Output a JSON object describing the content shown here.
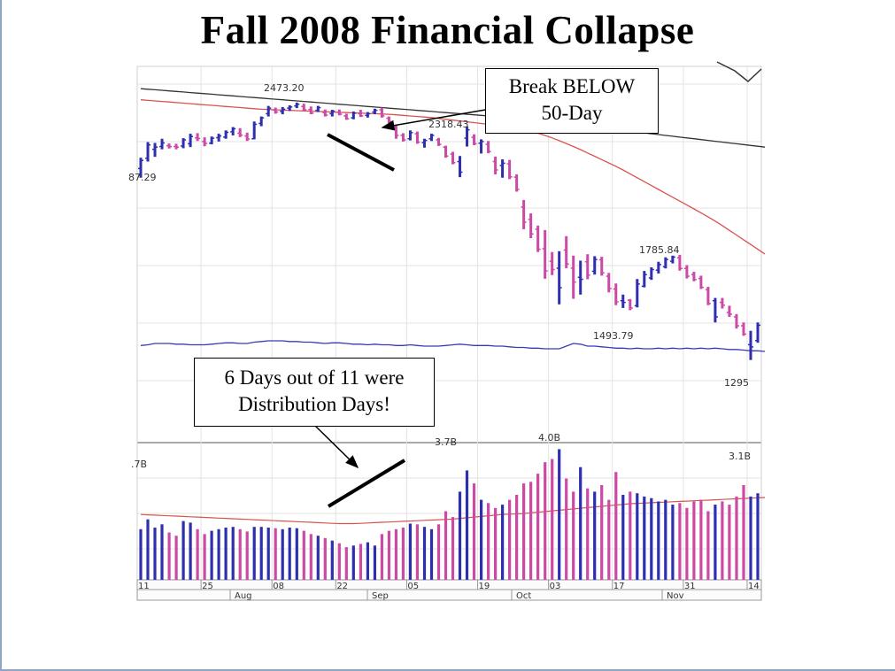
{
  "slide": {
    "title": "Fall 2008 Financial Collapse"
  },
  "callouts": {
    "break_line1": "Break BELOW",
    "break_line2": "50-Day",
    "dist_line1": "6 Days out of 11 were",
    "dist_line2": "Distribution Days!"
  },
  "colors": {
    "up_bar": "#2e2eb0",
    "down_bar": "#cc4aa4",
    "ma50": "#d9534f",
    "ma200": "#333333",
    "rs_line": "#3a3ab8",
    "grid": "#e3e3e3",
    "volume_ma": "#d9534f"
  },
  "chart_data": {
    "type": "ohlc",
    "price_labels": [
      "87.29",
      "2473.20",
      "2318.43",
      "1785.84",
      "1493.79",
      "1295"
    ],
    "volume_labels": [
      ".7B",
      "3.7B",
      "4.0B",
      "3.1B"
    ],
    "x_tick_labels": [
      "11",
      "25",
      "08",
      "22",
      "05",
      "19",
      "03",
      "17",
      "31",
      "14"
    ],
    "month_labels": [
      "Aug",
      "Sep",
      "Oct",
      "Nov"
    ],
    "ylim": [
      1240,
      2560
    ],
    "volume_ylim": [
      0,
      4.2
    ],
    "rs_ylim": [
      0,
      100
    ],
    "ohlc": [
      {
        "o": 2193,
        "h": 2232,
        "l": 2160,
        "c": 2222,
        "v": 1.55,
        "up": true
      },
      {
        "o": 2230,
        "h": 2288,
        "l": 2218,
        "c": 2278,
        "v": 1.85,
        "up": true
      },
      {
        "o": 2262,
        "h": 2285,
        "l": 2235,
        "c": 2270,
        "v": 1.6,
        "up": true
      },
      {
        "o": 2272,
        "h": 2300,
        "l": 2262,
        "c": 2285,
        "v": 1.7,
        "up": true
      },
      {
        "o": 2275,
        "h": 2283,
        "l": 2265,
        "c": 2272,
        "v": 1.45,
        "up": false
      },
      {
        "o": 2272,
        "h": 2282,
        "l": 2262,
        "c": 2270,
        "v": 1.35,
        "up": false
      },
      {
        "o": 2274,
        "h": 2302,
        "l": 2266,
        "c": 2296,
        "v": 1.8,
        "up": true
      },
      {
        "o": 2282,
        "h": 2318,
        "l": 2270,
        "c": 2308,
        "v": 1.75,
        "up": true
      },
      {
        "o": 2303,
        "h": 2320,
        "l": 2292,
        "c": 2301,
        "v": 1.55,
        "up": false
      },
      {
        "o": 2290,
        "h": 2305,
        "l": 2273,
        "c": 2283,
        "v": 1.4,
        "up": false
      },
      {
        "o": 2284,
        "h": 2308,
        "l": 2280,
        "c": 2302,
        "v": 1.5,
        "up": true
      },
      {
        "o": 2304,
        "h": 2318,
        "l": 2290,
        "c": 2310,
        "v": 1.55,
        "up": true
      },
      {
        "o": 2306,
        "h": 2330,
        "l": 2300,
        "c": 2323,
        "v": 1.6,
        "up": true
      },
      {
        "o": 2325,
        "h": 2342,
        "l": 2312,
        "c": 2336,
        "v": 1.62,
        "up": true
      },
      {
        "o": 2320,
        "h": 2338,
        "l": 2306,
        "c": 2313,
        "v": 1.55,
        "up": false
      },
      {
        "o": 2310,
        "h": 2322,
        "l": 2292,
        "c": 2299,
        "v": 1.48,
        "up": false
      },
      {
        "o": 2300,
        "h": 2362,
        "l": 2298,
        "c": 2352,
        "v": 1.62,
        "up": true
      },
      {
        "o": 2355,
        "h": 2380,
        "l": 2345,
        "c": 2375,
        "v": 1.62,
        "up": true
      },
      {
        "o": 2390,
        "h": 2418,
        "l": 2380,
        "c": 2410,
        "v": 1.6,
        "up": true
      },
      {
        "o": 2403,
        "h": 2412,
        "l": 2390,
        "c": 2396,
        "v": 1.58,
        "up": false
      },
      {
        "o": 2398,
        "h": 2414,
        "l": 2388,
        "c": 2406,
        "v": 1.55,
        "up": true
      },
      {
        "o": 2410,
        "h": 2420,
        "l": 2400,
        "c": 2414,
        "v": 1.6,
        "up": true
      },
      {
        "o": 2418,
        "h": 2430,
        "l": 2410,
        "c": 2424,
        "v": 1.58,
        "up": true
      },
      {
        "o": 2416,
        "h": 2426,
        "l": 2400,
        "c": 2404,
        "v": 1.5,
        "up": false
      },
      {
        "o": 2405,
        "h": 2416,
        "l": 2388,
        "c": 2392,
        "v": 1.4,
        "up": false
      },
      {
        "o": 2402,
        "h": 2418,
        "l": 2396,
        "c": 2412,
        "v": 1.35,
        "up": true
      },
      {
        "o": 2394,
        "h": 2405,
        "l": 2380,
        "c": 2385,
        "v": 1.28,
        "up": false
      },
      {
        "o": 2390,
        "h": 2404,
        "l": 2380,
        "c": 2399,
        "v": 1.2,
        "up": true
      },
      {
        "o": 2395,
        "h": 2405,
        "l": 2384,
        "c": 2388,
        "v": 1.12,
        "up": false
      },
      {
        "o": 2382,
        "h": 2390,
        "l": 2368,
        "c": 2372,
        "v": 1.0,
        "up": false
      },
      {
        "o": 2375,
        "h": 2398,
        "l": 2370,
        "c": 2392,
        "v": 1.05,
        "up": true
      },
      {
        "o": 2390,
        "h": 2404,
        "l": 2378,
        "c": 2382,
        "v": 1.1,
        "up": false
      },
      {
        "o": 2384,
        "h": 2396,
        "l": 2376,
        "c": 2390,
        "v": 1.15,
        "up": true
      },
      {
        "o": 2396,
        "h": 2408,
        "l": 2388,
        "c": 2402,
        "v": 1.05,
        "up": true
      },
      {
        "o": 2404,
        "h": 2412,
        "l": 2376,
        "c": 2382,
        "v": 1.4,
        "up": false
      },
      {
        "o": 2374,
        "h": 2380,
        "l": 2356,
        "c": 2362,
        "v": 1.5,
        "up": false
      },
      {
        "o": 2340,
        "h": 2350,
        "l": 2300,
        "c": 2312,
        "v": 1.55,
        "up": false
      },
      {
        "o": 2312,
        "h": 2320,
        "l": 2290,
        "c": 2296,
        "v": 1.6,
        "up": false
      },
      {
        "o": 2300,
        "h": 2330,
        "l": 2294,
        "c": 2322,
        "v": 1.72,
        "up": true
      },
      {
        "o": 2318,
        "h": 2326,
        "l": 2282,
        "c": 2288,
        "v": 1.7,
        "up": false
      },
      {
        "o": 2286,
        "h": 2300,
        "l": 2268,
        "c": 2294,
        "v": 1.62,
        "up": true
      },
      {
        "o": 2300,
        "h": 2318,
        "l": 2292,
        "c": 2312,
        "v": 1.55,
        "up": true
      },
      {
        "o": 2296,
        "h": 2303,
        "l": 2274,
        "c": 2280,
        "v": 1.7,
        "up": false
      },
      {
        "o": 2270,
        "h": 2275,
        "l": 2232,
        "c": 2238,
        "v": 2.1,
        "up": false
      },
      {
        "o": 2245,
        "h": 2253,
        "l": 2208,
        "c": 2214,
        "v": 1.92,
        "up": false
      },
      {
        "o": 2218,
        "h": 2238,
        "l": 2162,
        "c": 2180,
        "v": 2.7,
        "up": true
      },
      {
        "o": 2302,
        "h": 2344,
        "l": 2272,
        "c": 2332,
        "v": 3.35,
        "up": true
      },
      {
        "o": 2305,
        "h": 2316,
        "l": 2277,
        "c": 2282,
        "v": 2.95,
        "up": false
      },
      {
        "o": 2284,
        "h": 2298,
        "l": 2247,
        "c": 2290,
        "v": 2.45,
        "up": true
      },
      {
        "o": 2280,
        "h": 2292,
        "l": 2248,
        "c": 2254,
        "v": 2.35,
        "up": false
      },
      {
        "o": 2218,
        "h": 2236,
        "l": 2172,
        "c": 2188,
        "v": 2.2,
        "up": false
      },
      {
        "o": 2204,
        "h": 2226,
        "l": 2160,
        "c": 2212,
        "v": 2.3,
        "up": true
      },
      {
        "o": 2210,
        "h": 2224,
        "l": 2155,
        "c": 2163,
        "v": 2.45,
        "up": false
      },
      {
        "o": 2162,
        "h": 2172,
        "l": 2110,
        "c": 2118,
        "v": 2.6,
        "up": false
      },
      {
        "o": 2055,
        "h": 2080,
        "l": 1975,
        "c": 2000,
        "v": 2.95,
        "up": false
      },
      {
        "o": 2010,
        "h": 2032,
        "l": 1943,
        "c": 1958,
        "v": 3.0,
        "up": false
      },
      {
        "o": 1975,
        "h": 1988,
        "l": 1893,
        "c": 1903,
        "v": 3.25,
        "up": false
      },
      {
        "o": 1905,
        "h": 1972,
        "l": 1797,
        "c": 1825,
        "v": 3.6,
        "up": false
      },
      {
        "o": 1860,
        "h": 1893,
        "l": 1810,
        "c": 1830,
        "v": 3.7,
        "up": false
      },
      {
        "o": 1835,
        "h": 1896,
        "l": 1705,
        "c": 1765,
        "v": 4.0,
        "up": true
      },
      {
        "o": 1900,
        "h": 1950,
        "l": 1835,
        "c": 1850,
        "v": 3.1,
        "up": false
      },
      {
        "o": 1835,
        "h": 1880,
        "l": 1725,
        "c": 1785,
        "v": 2.7,
        "up": false
      },
      {
        "o": 1802,
        "h": 1862,
        "l": 1740,
        "c": 1795,
        "v": 3.45,
        "up": true
      },
      {
        "o": 1858,
        "h": 1885,
        "l": 1795,
        "c": 1810,
        "v": 2.8,
        "up": false
      },
      {
        "o": 1824,
        "h": 1878,
        "l": 1812,
        "c": 1866,
        "v": 2.7,
        "up": true
      },
      {
        "o": 1865,
        "h": 1876,
        "l": 1808,
        "c": 1818,
        "v": 2.9,
        "up": false
      },
      {
        "o": 1806,
        "h": 1818,
        "l": 1748,
        "c": 1762,
        "v": 2.45,
        "up": false
      },
      {
        "o": 1760,
        "h": 1780,
        "l": 1702,
        "c": 1714,
        "v": 3.3,
        "up": false
      },
      {
        "o": 1718,
        "h": 1740,
        "l": 1692,
        "c": 1712,
        "v": 2.6,
        "up": true
      },
      {
        "o": 1720,
        "h": 1724,
        "l": 1684,
        "c": 1692,
        "v": 2.7,
        "up": false
      },
      {
        "o": 1700,
        "h": 1796,
        "l": 1694,
        "c": 1778,
        "v": 2.65,
        "up": true
      },
      {
        "o": 1770,
        "h": 1825,
        "l": 1766,
        "c": 1812,
        "v": 2.55,
        "up": true
      },
      {
        "o": 1800,
        "h": 1838,
        "l": 1793,
        "c": 1830,
        "v": 2.5,
        "up": true
      },
      {
        "o": 1828,
        "h": 1858,
        "l": 1816,
        "c": 1848,
        "v": 2.4,
        "up": true
      },
      {
        "o": 1840,
        "h": 1874,
        "l": 1834,
        "c": 1866,
        "v": 2.45,
        "up": true
      },
      {
        "o": 1860,
        "h": 1880,
        "l": 1852,
        "c": 1875,
        "v": 2.3,
        "up": true
      },
      {
        "o": 1872,
        "h": 1883,
        "l": 1826,
        "c": 1834,
        "v": 2.35,
        "up": false
      },
      {
        "o": 1834,
        "h": 1846,
        "l": 1798,
        "c": 1806,
        "v": 2.2,
        "up": false
      },
      {
        "o": 1812,
        "h": 1822,
        "l": 1788,
        "c": 1794,
        "v": 2.4,
        "up": false
      },
      {
        "o": 1798,
        "h": 1808,
        "l": 1760,
        "c": 1766,
        "v": 2.45,
        "up": false
      },
      {
        "o": 1758,
        "h": 1768,
        "l": 1702,
        "c": 1708,
        "v": 2.1,
        "up": false
      },
      {
        "o": 1718,
        "h": 1728,
        "l": 1640,
        "c": 1660,
        "v": 2.3,
        "up": true
      },
      {
        "o": 1712,
        "h": 1728,
        "l": 1690,
        "c": 1702,
        "v": 2.4,
        "up": false
      },
      {
        "o": 1676,
        "h": 1700,
        "l": 1660,
        "c": 1670,
        "v": 2.3,
        "up": false
      },
      {
        "o": 1660,
        "h": 1670,
        "l": 1618,
        "c": 1628,
        "v": 2.55,
        "up": false
      },
      {
        "o": 1628,
        "h": 1640,
        "l": 1592,
        "c": 1598,
        "v": 2.9,
        "up": false
      },
      {
        "o": 1560,
        "h": 1610,
        "l": 1505,
        "c": 1552,
        "v": 2.55,
        "up": true
      },
      {
        "o": 1575,
        "h": 1640,
        "l": 1567,
        "c": 1630,
        "v": 2.65,
        "up": true
      }
    ],
    "ma50": [
      2440,
      2438,
      2436,
      2434,
      2432,
      2430,
      2428,
      2426,
      2424,
      2422,
      2420,
      2418,
      2416,
      2414,
      2412,
      2410,
      2408,
      2406,
      2405,
      2404,
      2403,
      2402,
      2401,
      2400,
      2399,
      2398,
      2397,
      2396,
      2395,
      2394,
      2393,
      2392,
      2391,
      2390,
      2389,
      2388,
      2386,
      2384,
      2382,
      2380,
      2378,
      2376,
      2373,
      2370,
      2367,
      2364,
      2361,
      2358,
      2355,
      2352,
      2349,
      2345,
      2341,
      2337,
      2333,
      2327,
      2320,
      2312,
      2303,
      2293,
      2283,
      2272,
      2261,
      2249,
      2237,
      2225,
      2213,
      2201,
      2188,
      2174,
      2160,
      2146,
      2132,
      2118,
      2104,
      2090,
      2076,
      2062,
      2048,
      2034,
      2019,
      2004,
      1988,
      1971,
      1954,
      1937,
      1920,
      1903,
      1886
    ],
    "ma200": [
      2480,
      2478,
      2476,
      2474,
      2472,
      2470,
      2468,
      2466,
      2464,
      2462,
      2460,
      2458,
      2456,
      2454,
      2452,
      2450,
      2448,
      2446,
      2444,
      2442,
      2440,
      2438,
      2436,
      2434,
      2432,
      2430,
      2428,
      2426,
      2424,
      2422,
      2420,
      2418,
      2416,
      2414,
      2412,
      2410,
      2408,
      2406,
      2404,
      2402,
      2400,
      2398,
      2396,
      2394,
      2392,
      2390,
      2388,
      2386,
      2384,
      2382,
      2380,
      2378,
      2376,
      2374,
      2372,
      2369,
      2366,
      2363,
      2360,
      2357,
      2354,
      2351,
      2348,
      2345,
      2342,
      2339,
      2336,
      2333,
      2330,
      2327,
      2324,
      2321,
      2318,
      2315,
      2312,
      2309,
      2306,
      2303,
      2300,
      2297,
      2294,
      2291,
      2288,
      2285,
      2282,
      2279,
      2276,
      2273,
      2270
    ],
    "rs_line": [
      53,
      54,
      56,
      56,
      56,
      55,
      55,
      54,
      54,
      54,
      55,
      56,
      57,
      57,
      56,
      56,
      58,
      59,
      60,
      60,
      60,
      59,
      59,
      58,
      58,
      57,
      56,
      57,
      57,
      56,
      55,
      55,
      54,
      55,
      54,
      54,
      53,
      53,
      54,
      53,
      52,
      52,
      52,
      53,
      54,
      55,
      54,
      53,
      53,
      53,
      52,
      52,
      51,
      50,
      50,
      49,
      49,
      48,
      48,
      48,
      52,
      56,
      55,
      52,
      52,
      51,
      50,
      49,
      49,
      48,
      49,
      48,
      48,
      49,
      48,
      49,
      48,
      49,
      48,
      49,
      48,
      49,
      48,
      47,
      47,
      46,
      45,
      45,
      44
    ],
    "volume_ma": [
      2.0,
      1.99,
      1.98,
      1.97,
      1.96,
      1.95,
      1.94,
      1.93,
      1.92,
      1.91,
      1.9,
      1.89,
      1.88,
      1.87,
      1.86,
      1.85,
      1.84,
      1.83,
      1.82,
      1.81,
      1.8,
      1.79,
      1.78,
      1.77,
      1.76,
      1.75,
      1.74,
      1.73,
      1.72,
      1.72,
      1.72,
      1.73,
      1.74,
      1.75,
      1.76,
      1.77,
      1.78,
      1.79,
      1.8,
      1.81,
      1.82,
      1.83,
      1.84,
      1.85,
      1.86,
      1.88,
      1.9,
      1.92,
      1.94,
      1.96,
      1.98,
      2.0,
      2.01,
      2.02,
      2.03,
      2.05,
      2.07,
      2.09,
      2.11,
      2.13,
      2.15,
      2.17,
      2.19,
      2.21,
      2.23,
      2.25,
      2.27,
      2.29,
      2.31,
      2.33,
      2.34,
      2.35,
      2.36,
      2.37,
      2.38,
      2.39,
      2.4,
      2.41,
      2.42,
      2.43,
      2.44,
      2.45,
      2.46,
      2.47,
      2.48,
      2.49,
      2.5,
      2.51,
      2.52
    ]
  }
}
